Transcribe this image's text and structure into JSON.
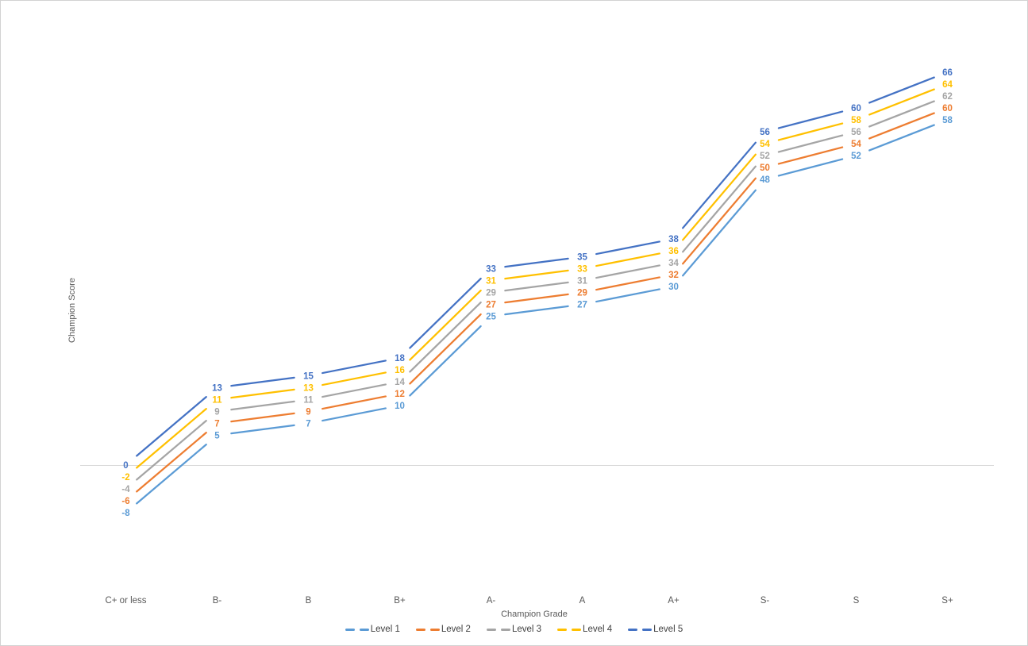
{
  "chart_data": {
    "type": "line",
    "xlabel": "Champion Grade",
    "ylabel": "Champion Score",
    "categories": [
      "C+ or less",
      "B-",
      "B",
      "B+",
      "A-",
      "A",
      "A+",
      "S-",
      "S",
      "S+"
    ],
    "series": [
      {
        "name": "Level 1",
        "color": "#5B9BD5",
        "values": [
          -8,
          5,
          7,
          10,
          25,
          27,
          30,
          48,
          52,
          58
        ]
      },
      {
        "name": "Level 2",
        "color": "#ED7D31",
        "values": [
          -6,
          7,
          9,
          12,
          27,
          29,
          32,
          50,
          54,
          60
        ]
      },
      {
        "name": "Level 3",
        "color": "#A5A5A5",
        "values": [
          -4,
          9,
          11,
          14,
          29,
          31,
          34,
          52,
          56,
          62
        ]
      },
      {
        "name": "Level 4",
        "color": "#FFC000",
        "values": [
          -2,
          11,
          13,
          16,
          31,
          33,
          36,
          54,
          58,
          64
        ]
      },
      {
        "name": "Level 5",
        "color": "#4472C4",
        "values": [
          0,
          13,
          15,
          18,
          33,
          35,
          38,
          56,
          60,
          66
        ]
      }
    ],
    "ylim": [
      -8,
      66
    ],
    "grid": false,
    "legend_position": "bottom",
    "data_labels": true,
    "axis_line_color": "#D9D9D9",
    "axis_text_color": "#595959",
    "legend_text_color": "#404040"
  }
}
